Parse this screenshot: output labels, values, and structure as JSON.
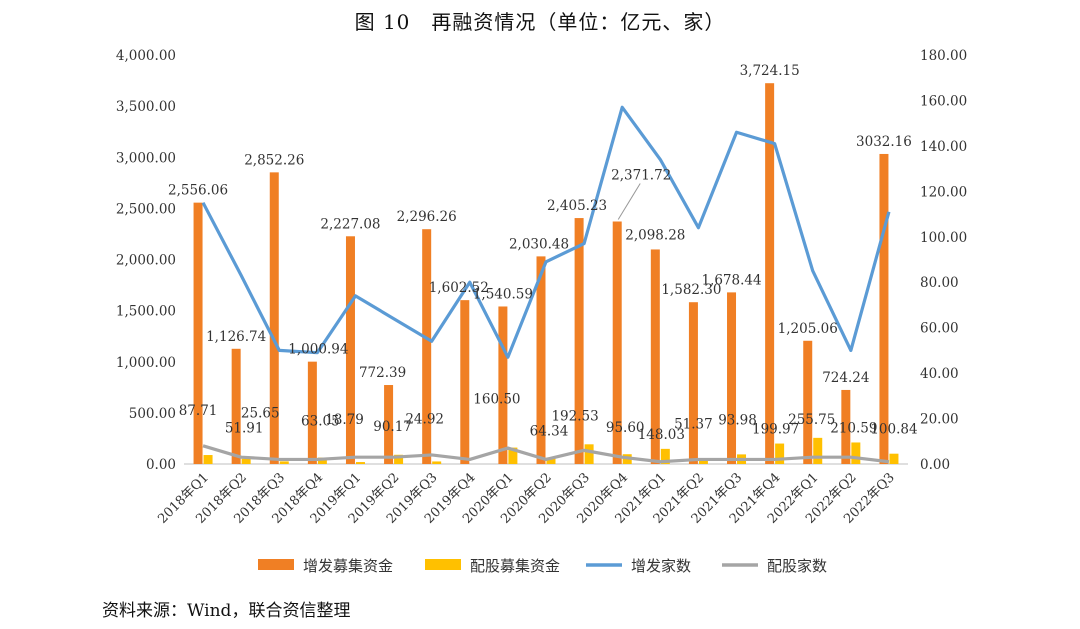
{
  "page": {
    "title": "图 10　再融资情况（单位：亿元、家）",
    "source": "资料来源：Wind，联合资信整理"
  },
  "colors": {
    "bar_main": "#F07F24",
    "bar_rights": "#FFC000",
    "line_main": "#5B9BD5",
    "line_rights": "#A5A5A5"
  },
  "chart_data": {
    "type": "bar",
    "categories": [
      "2018年Q1",
      "2018年Q2",
      "2018年Q3",
      "2018年Q4",
      "2019年Q1",
      "2019年Q2",
      "2019年Q3",
      "2019年Q4",
      "2020年Q1",
      "2020年Q2",
      "2020年Q3",
      "2020年Q4",
      "2021年Q1",
      "2021年Q2",
      "2021年Q3",
      "2021年Q4",
      "2022年Q1",
      "2022年Q2",
      "2022年Q3"
    ],
    "y_left": {
      "min": 0,
      "max": 4000,
      "step": 500,
      "tick_labels": [
        "0.00",
        "500.00",
        "1,000.00",
        "1,500.00",
        "2,000.00",
        "2,500.00",
        "3,000.00",
        "3,500.00",
        "4,000.00"
      ]
    },
    "y_right": {
      "min": 0,
      "max": 180,
      "step": 20,
      "tick_labels": [
        "0.00",
        "20.00",
        "40.00",
        "60.00",
        "80.00",
        "100.00",
        "120.00",
        "140.00",
        "160.00",
        "180.00"
      ]
    },
    "series": [
      {
        "name": "增发募集资金",
        "type": "bar",
        "axis": "left",
        "values": [
          2556.06,
          1126.74,
          2852.26,
          1000.94,
          2227.08,
          772.39,
          2296.26,
          1602.52,
          1540.59,
          2030.48,
          2405.23,
          2371.72,
          2098.28,
          1582.3,
          1678.44,
          3724.15,
          1205.06,
          724.24,
          3032.16
        ],
        "labels": [
          "2,556.06",
          "1,126.74",
          "2,852.26",
          "1,000.94",
          "2,227.08",
          "772.39",
          "2,296.26",
          "1,602.52",
          "1,540.59",
          "2,030.48",
          "2,405.23",
          "2,371.72",
          "2,098.28",
          "1,582.30",
          "1,678.44",
          "3,724.15",
          "1,205.06",
          "724.24",
          "3032.16"
        ]
      },
      {
        "name": "配股募集资金",
        "type": "bar",
        "axis": "left",
        "values": [
          87.71,
          51.91,
          25.65,
          63.05,
          18.79,
          90.17,
          24.92,
          0,
          160.5,
          64.34,
          192.53,
          95.6,
          148.03,
          51.37,
          93.98,
          199.97,
          255.75,
          210.59,
          100.84
        ],
        "labels": [
          "87.71",
          "51.91",
          "25.65",
          "63.05",
          "18.79",
          "90.17",
          "24.92",
          "",
          "160.50",
          "64.34",
          "192.53",
          "95.60",
          "148.03",
          "51.37",
          "93.98",
          "199.97",
          "255.75",
          "210.59",
          "100.84"
        ]
      },
      {
        "name": "增发家数",
        "type": "line",
        "axis": "right",
        "values": [
          115,
          83,
          50,
          49,
          74,
          64,
          54,
          80,
          47,
          89,
          97,
          157,
          134,
          104,
          146,
          141,
          85,
          50,
          111
        ]
      },
      {
        "name": "配股家数",
        "type": "line",
        "axis": "right",
        "values": [
          8,
          3,
          2,
          2,
          3,
          3,
          4,
          2,
          7,
          2,
          6,
          3,
          1,
          2,
          2,
          2,
          3,
          3,
          1
        ]
      }
    ]
  }
}
